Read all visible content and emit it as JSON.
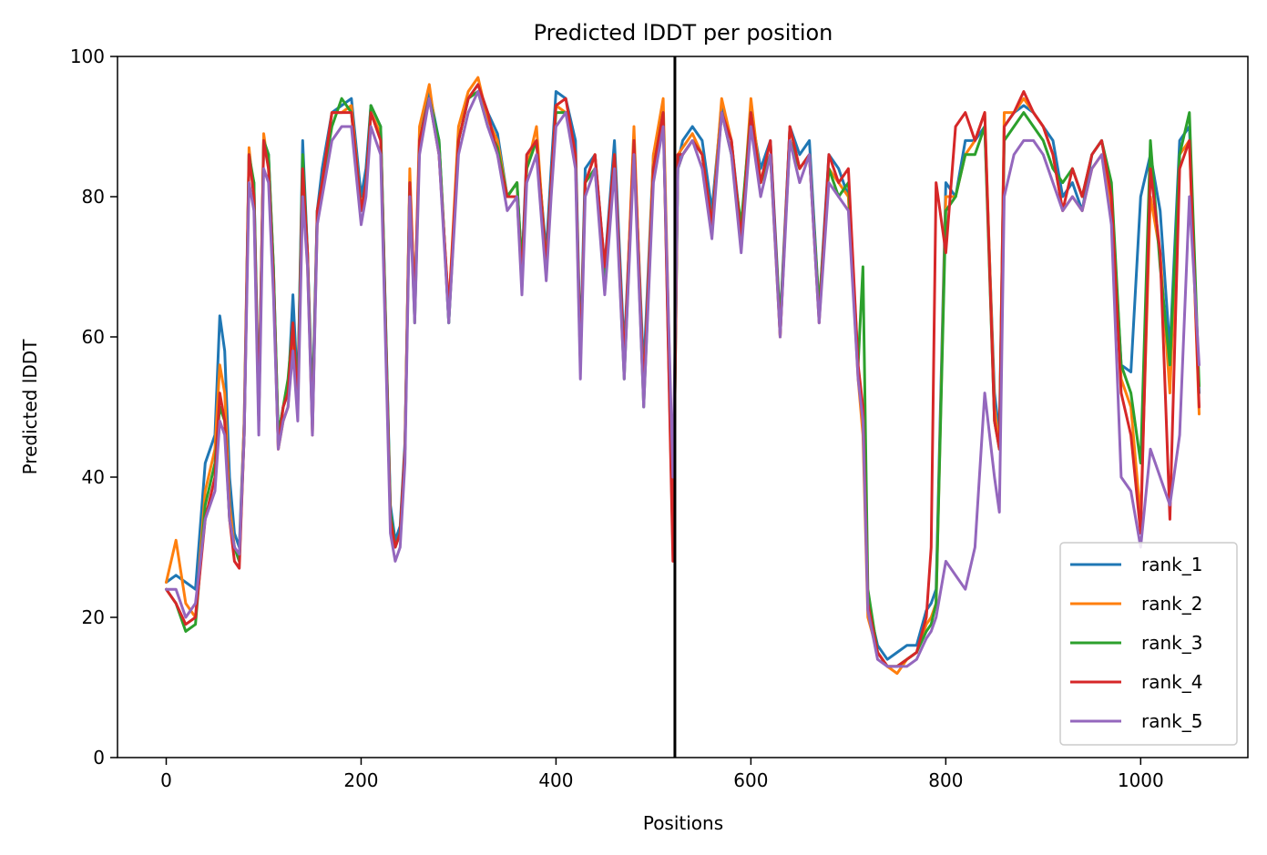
{
  "chart_data": {
    "type": "line",
    "title": "Predicted lDDT per position",
    "xlabel": "Positions",
    "ylabel": "Predicted lDDT",
    "xlim": [
      -50,
      1110
    ],
    "ylim": [
      0,
      100
    ],
    "xticks": [
      0,
      200,
      400,
      600,
      800,
      1000
    ],
    "yticks": [
      0,
      20,
      40,
      60,
      80,
      100
    ],
    "grid": false,
    "legend_position": "lower-right",
    "vertical_line": {
      "x": 522,
      "color": "#000000"
    },
    "colors": [
      "#1f77b4",
      "#ff7f0e",
      "#2ca02c",
      "#d62728",
      "#9467bd"
    ],
    "x": [
      0,
      10,
      20,
      30,
      40,
      50,
      55,
      60,
      65,
      70,
      75,
      80,
      85,
      90,
      95,
      100,
      105,
      110,
      115,
      120,
      125,
      130,
      135,
      140,
      145,
      150,
      155,
      160,
      170,
      180,
      190,
      200,
      205,
      210,
      220,
      230,
      235,
      240,
      245,
      250,
      255,
      260,
      270,
      280,
      290,
      300,
      310,
      320,
      330,
      340,
      350,
      360,
      365,
      370,
      380,
      390,
      395,
      400,
      410,
      420,
      425,
      430,
      440,
      450,
      460,
      470,
      480,
      490,
      500,
      510,
      520,
      525,
      530,
      540,
      550,
      560,
      570,
      580,
      590,
      600,
      610,
      620,
      630,
      640,
      650,
      660,
      670,
      680,
      690,
      700,
      710,
      715,
      720,
      730,
      740,
      750,
      760,
      770,
      780,
      785,
      790,
      800,
      810,
      820,
      830,
      840,
      850,
      855,
      860,
      870,
      880,
      890,
      900,
      910,
      920,
      930,
      940,
      950,
      960,
      970,
      980,
      990,
      1000,
      1010,
      1020,
      1030,
      1040,
      1050,
      1060
    ],
    "series": [
      {
        "name": "rank_1",
        "values": [
          25,
          26,
          25,
          24,
          42,
          46,
          63,
          58,
          40,
          32,
          30,
          48,
          85,
          82,
          50,
          88,
          86,
          70,
          46,
          50,
          52,
          66,
          52,
          88,
          72,
          50,
          78,
          84,
          92,
          93,
          94,
          80,
          84,
          93,
          90,
          36,
          31,
          33,
          45,
          82,
          65,
          88,
          95,
          88,
          62,
          88,
          94,
          96,
          92,
          89,
          80,
          82,
          70,
          86,
          88,
          72,
          84,
          95,
          94,
          88,
          58,
          84,
          86,
          70,
          88,
          58,
          88,
          55,
          86,
          92,
          34,
          85,
          88,
          90,
          88,
          78,
          93,
          88,
          75,
          92,
          84,
          88,
          62,
          90,
          86,
          88,
          64,
          86,
          84,
          80,
          55,
          48,
          22,
          16,
          14,
          15,
          16,
          16,
          21,
          22,
          24,
          82,
          80,
          88,
          88,
          90,
          52,
          46,
          90,
          92,
          93,
          92,
          90,
          88,
          80,
          82,
          78,
          86,
          88,
          80,
          56,
          55,
          80,
          86,
          78,
          58,
          88,
          90,
          52
        ]
      },
      {
        "name": "rank_2",
        "values": [
          25,
          31,
          22,
          20,
          38,
          44,
          56,
          52,
          36,
          30,
          28,
          48,
          87,
          80,
          48,
          89,
          84,
          68,
          44,
          48,
          50,
          60,
          50,
          84,
          70,
          48,
          76,
          82,
          92,
          92,
          93,
          78,
          82,
          92,
          89,
          34,
          30,
          32,
          44,
          84,
          64,
          90,
          96,
          86,
          64,
          90,
          95,
          97,
          91,
          88,
          80,
          82,
          68,
          84,
          90,
          70,
          82,
          93,
          92,
          86,
          56,
          82,
          86,
          68,
          86,
          56,
          90,
          52,
          86,
          94,
          36,
          86,
          87,
          89,
          86,
          76,
          94,
          88,
          74,
          94,
          82,
          86,
          60,
          90,
          84,
          86,
          64,
          84,
          82,
          80,
          54,
          46,
          20,
          15,
          13,
          12,
          14,
          15,
          19,
          20,
          22,
          80,
          80,
          86,
          88,
          92,
          50,
          44,
          92,
          92,
          94,
          92,
          90,
          86,
          78,
          80,
          78,
          84,
          86,
          78,
          54,
          50,
          34,
          80,
          72,
          52,
          86,
          88,
          49
        ]
      },
      {
        "name": "rank_3",
        "values": [
          24,
          22,
          18,
          19,
          36,
          42,
          50,
          48,
          34,
          30,
          28,
          46,
          86,
          82,
          48,
          88,
          86,
          70,
          46,
          50,
          54,
          62,
          52,
          86,
          72,
          48,
          78,
          82,
          90,
          94,
          92,
          78,
          82,
          93,
          90,
          35,
          30,
          32,
          44,
          82,
          62,
          88,
          94,
          88,
          62,
          88,
          94,
          95,
          90,
          87,
          80,
          82,
          70,
          84,
          88,
          70,
          82,
          92,
          92,
          86,
          56,
          82,
          84,
          68,
          86,
          54,
          88,
          50,
          84,
          92,
          30,
          84,
          86,
          88,
          86,
          76,
          92,
          86,
          76,
          92,
          82,
          86,
          62,
          88,
          84,
          86,
          64,
          84,
          80,
          82,
          56,
          70,
          24,
          15,
          13,
          13,
          14,
          15,
          18,
          19,
          22,
          78,
          80,
          86,
          86,
          90,
          48,
          44,
          88,
          90,
          92,
          90,
          88,
          84,
          82,
          84,
          80,
          86,
          88,
          82,
          56,
          52,
          42,
          88,
          70,
          56,
          86,
          92,
          53
        ]
      },
      {
        "name": "rank_4",
        "values": [
          24,
          22,
          19,
          20,
          34,
          40,
          52,
          48,
          34,
          28,
          27,
          46,
          86,
          80,
          48,
          88,
          84,
          68,
          44,
          50,
          52,
          62,
          50,
          84,
          72,
          46,
          78,
          82,
          92,
          92,
          92,
          78,
          82,
          92,
          88,
          34,
          30,
          32,
          44,
          82,
          64,
          88,
          94,
          86,
          64,
          88,
          94,
          96,
          92,
          86,
          80,
          80,
          68,
          86,
          88,
          70,
          82,
          93,
          94,
          86,
          56,
          82,
          86,
          70,
          86,
          56,
          88,
          52,
          84,
          92,
          28,
          86,
          86,
          88,
          86,
          76,
          92,
          88,
          74,
          92,
          82,
          88,
          60,
          90,
          84,
          86,
          62,
          86,
          82,
          84,
          56,
          50,
          22,
          15,
          13,
          13,
          14,
          15,
          20,
          30,
          82,
          72,
          90,
          92,
          88,
          92,
          48,
          44,
          90,
          92,
          95,
          92,
          90,
          86,
          78,
          84,
          80,
          86,
          88,
          80,
          52,
          46,
          32,
          84,
          72,
          34,
          84,
          88,
          50
        ]
      },
      {
        "name": "rank_5",
        "values": [
          24,
          24,
          20,
          22,
          34,
          38,
          48,
          46,
          34,
          30,
          29,
          46,
          82,
          78,
          46,
          84,
          82,
          66,
          44,
          48,
          50,
          58,
          48,
          80,
          70,
          46,
          76,
          80,
          88,
          90,
          90,
          76,
          80,
          90,
          86,
          32,
          28,
          30,
          42,
          80,
          62,
          86,
          94,
          86,
          62,
          86,
          92,
          95,
          90,
          86,
          78,
          80,
          66,
          82,
          86,
          68,
          80,
          90,
          92,
          84,
          54,
          80,
          84,
          66,
          84,
          54,
          86,
          50,
          82,
          90,
          40,
          84,
          86,
          88,
          84,
          74,
          92,
          86,
          72,
          90,
          80,
          86,
          60,
          88,
          82,
          86,
          62,
          82,
          80,
          78,
          54,
          48,
          21,
          14,
          13,
          13,
          13,
          14,
          17,
          18,
          20,
          28,
          26,
          24,
          30,
          52,
          40,
          35,
          80,
          86,
          88,
          88,
          86,
          82,
          78,
          80,
          78,
          84,
          86,
          76,
          40,
          38,
          30,
          44,
          40,
          36,
          46,
          80,
          56
        ]
      }
    ]
  }
}
